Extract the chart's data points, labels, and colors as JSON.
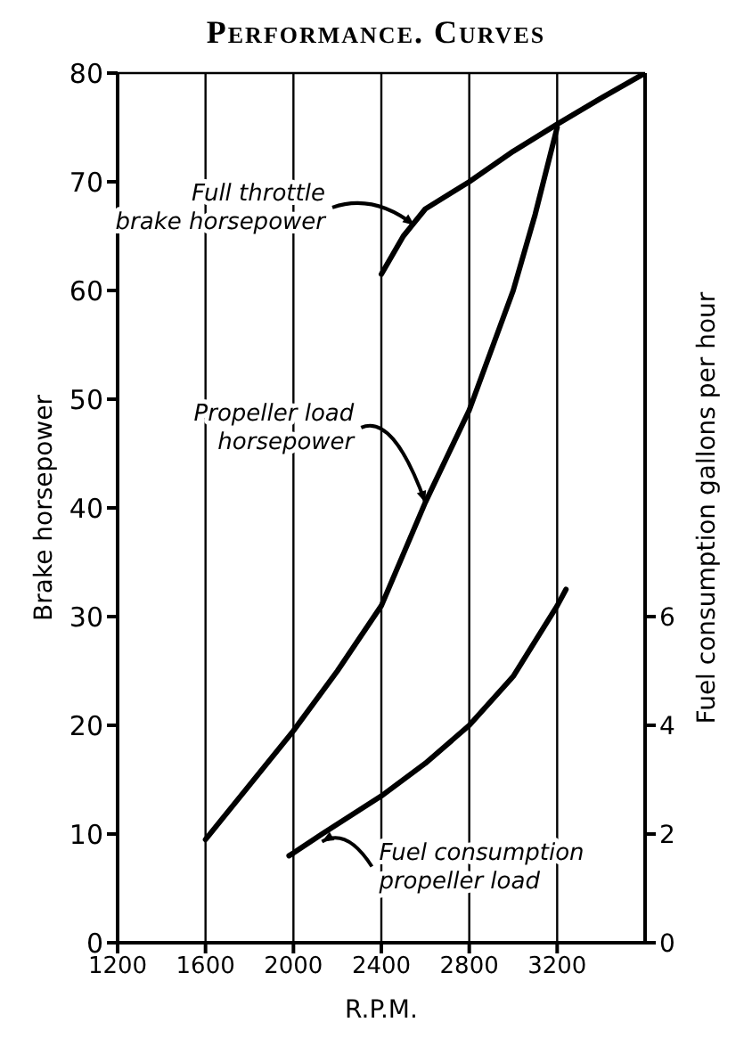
{
  "chart_data": {
    "type": "line",
    "title": "Performance. Curves",
    "xlabel": "R.P.M.",
    "ylabel": "Brake horsepower",
    "y2label": "Fuel consumption gallons per hour",
    "xlim": [
      1200,
      3600
    ],
    "xticks": [
      1200,
      1600,
      2000,
      2400,
      2800,
      3200
    ],
    "ylim": [
      0,
      80
    ],
    "yticks": [
      0,
      10,
      20,
      30,
      40,
      50,
      60,
      70,
      80
    ],
    "y2lim": [
      0,
      16
    ],
    "y2ticks": [
      0,
      2,
      4,
      6
    ],
    "grid": true,
    "legend": false,
    "marker": "none",
    "line_style": "solid",
    "series": [
      {
        "color": "#000000",
        "x": [
          2400,
          2500,
          2600,
          2800,
          3000,
          3200,
          3400,
          3600
        ],
        "values": [
          61.5,
          65,
          67.5,
          70,
          72.8,
          75.3,
          77.7,
          80
        ]
      },
      {
        "color": "#000000",
        "x": [
          1600,
          1800,
          2000,
          2200,
          2400,
          2600,
          2800,
          3000,
          3100,
          3200
        ],
        "values": [
          9.5,
          14.5,
          19.5,
          25,
          31,
          40.5,
          49,
          60,
          67,
          75
        ]
      },
      {
        "color": "#000000",
        "axis": "y2",
        "x": [
          1980,
          2000,
          2130,
          2400,
          2600,
          2800,
          3000,
          3200,
          3240
        ],
        "values": [
          1.6,
          1.65,
          2.0,
          2.7,
          3.3,
          4.0,
          4.9,
          6.2,
          6.5
        ]
      }
    ],
    "annotations": [
      {
        "text": "Full throttle\nbrake horsepower",
        "x": 2550,
        "y": 66
      },
      {
        "text": "Propeller load\nhorsepower",
        "x": 2600,
        "y": 40.5
      },
      {
        "text": "Fuel consumption\npropeller load",
        "x": 2130,
        "y": 9.3
      }
    ]
  }
}
